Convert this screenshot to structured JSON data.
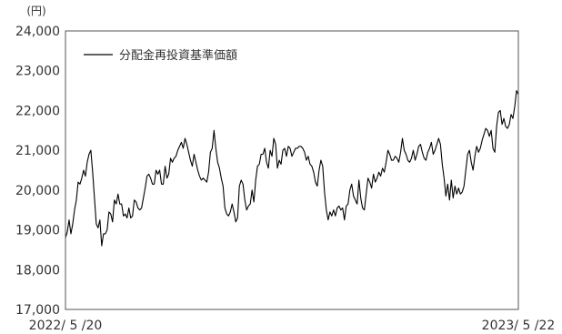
{
  "chart_data": {
    "type": "line",
    "title": "",
    "unit_label": "(円)",
    "xlabel": "",
    "ylabel": "",
    "ylim": [
      17000,
      24000
    ],
    "y_ticks": [
      "24,000",
      "23,000",
      "22,000",
      "21,000",
      "20,000",
      "19,000",
      "18,000",
      "17,000"
    ],
    "y_tick_values": [
      24000,
      23000,
      22000,
      21000,
      20000,
      19000,
      18000,
      17000
    ],
    "x_start_label": "2022/ 5 /20",
    "x_end_label": "2023/ 5 /22",
    "legend_position": "top-left",
    "grid": false,
    "series": [
      {
        "name": "分配金再投資基準価額",
        "color": "#000000",
        "values": [
          18800,
          18950,
          19250,
          18900,
          19150,
          19500,
          19750,
          20200,
          20150,
          20300,
          20500,
          20350,
          20700,
          20900,
          21000,
          20450,
          19800,
          19150,
          19050,
          19250,
          18600,
          18900,
          18900,
          19000,
          19450,
          19400,
          19200,
          19750,
          19650,
          19900,
          19650,
          19650,
          19350,
          19400,
          19300,
          19550,
          19300,
          19350,
          19750,
          19700,
          19550,
          19500,
          19550,
          19800,
          20050,
          20350,
          20400,
          20300,
          20150,
          20150,
          20500,
          20400,
          20500,
          20150,
          20150,
          20600,
          20300,
          20400,
          20800,
          20700,
          20800,
          20850,
          21000,
          21100,
          21200,
          21050,
          21300,
          21150,
          20950,
          20750,
          20600,
          20900,
          20700,
          20500,
          20350,
          20250,
          20300,
          20250,
          20200,
          20450,
          20950,
          21050,
          21500,
          21050,
          20700,
          20550,
          20300,
          20100,
          19550,
          19400,
          19350,
          19450,
          19650,
          19450,
          19200,
          19300,
          20100,
          20250,
          20150,
          19750,
          19500,
          19600,
          19650,
          20000,
          19700,
          20250,
          20600,
          20650,
          20900,
          20900,
          21050,
          20700,
          20550,
          21000,
          20850,
          21300,
          21150,
          20550,
          20750,
          20650,
          21000,
          21050,
          20850,
          21100,
          21050,
          20850,
          20950,
          21050,
          21050,
          21100,
          21100,
          21050,
          20950,
          20750,
          20850,
          20650,
          20600,
          20450,
          20200,
          20100,
          20500,
          20750,
          20600,
          19950,
          19500,
          19250,
          19450,
          19350,
          19500,
          19350,
          19550,
          19600,
          19500,
          19550,
          19250,
          19600,
          19650,
          20000,
          20150,
          19850,
          19750,
          19650,
          20250,
          19800,
          19550,
          19500,
          19900,
          20300,
          20200,
          20050,
          20400,
          20200,
          20300,
          20450,
          20350,
          20550,
          20450,
          20700,
          21000,
          20900,
          20750,
          20750,
          20850,
          20800,
          20700,
          20950,
          21300,
          21000,
          20900,
          20750,
          20700,
          20800,
          21000,
          20750,
          20900,
          21100,
          21150,
          20950,
          20800,
          20750,
          20950,
          21050,
          21200,
          20900,
          21000,
          21150,
          21300,
          21150,
          20650,
          20300,
          19850,
          20150,
          19750,
          20250,
          19800,
          20100,
          19900,
          20050,
          19900,
          19950,
          20100,
          20500,
          20900,
          21000,
          20700,
          20500,
          20850,
          21100,
          20950,
          21050,
          21250,
          21400,
          21550,
          21500,
          21350,
          21500,
          21050,
          20950,
          21600,
          21950,
          22000,
          21650,
          21800,
          21600,
          21550,
          21650,
          21900,
          21800,
          22100,
          22500,
          22400
        ]
      }
    ]
  }
}
